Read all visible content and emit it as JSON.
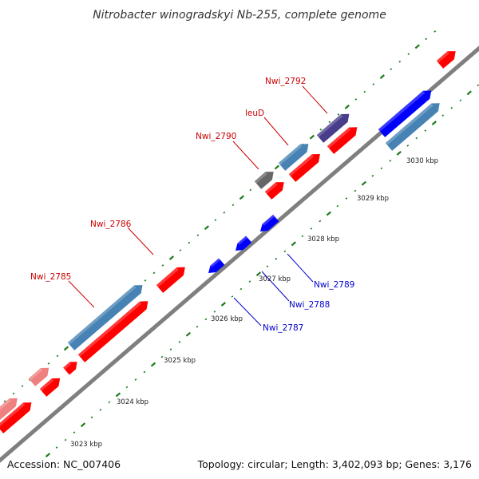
{
  "title": "Nitrobacter winogradskyi Nb-255, complete genome",
  "accession": "Accession: NC_007406",
  "summary": "Topology: circular; Length: 3,402,093 bp; Genes: 3,176",
  "colors": {
    "backbone": "#7f7f7f",
    "tick": "#1a7a1a",
    "label_red": "#cc0000",
    "label_blue": "#0000cc",
    "red": "#ff0000",
    "blue": "#0000ff",
    "steelblue": "#4682b4",
    "pink": "#f08080",
    "slate": "#483d8b",
    "gray": "#666666"
  },
  "ticks": [
    {
      "label": "3023 kbp"
    },
    {
      "label": "3024 kbp"
    },
    {
      "label": "3025 kbp"
    },
    {
      "label": "3026 kbp"
    },
    {
      "label": "3027 kbp"
    },
    {
      "label": "3028 kbp"
    },
    {
      "label": "3029 kbp"
    },
    {
      "label": "3030 kbp"
    }
  ],
  "gene_labels": [
    {
      "name": "Nwi_2785",
      "strand": "forward"
    },
    {
      "name": "Nwi_2786",
      "strand": "forward"
    },
    {
      "name": "Nwi_2790",
      "strand": "forward"
    },
    {
      "name": "leuD",
      "strand": "forward"
    },
    {
      "name": "Nwi_2792",
      "strand": "forward"
    },
    {
      "name": "Nwi_2787",
      "strand": "reverse"
    },
    {
      "name": "Nwi_2788",
      "strand": "reverse"
    },
    {
      "name": "Nwi_2789",
      "strand": "reverse"
    }
  ]
}
